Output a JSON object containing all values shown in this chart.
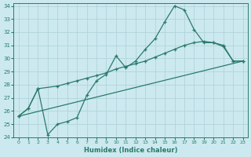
{
  "xlabel": "Humidex (Indice chaleur)",
  "background_color": "#cce9ef",
  "line_color": "#2a7a6b",
  "grid_color": "#b0d4da",
  "xlim": [
    -0.5,
    23.5
  ],
  "ylim": [
    24,
    34.2
  ],
  "xticks": [
    0,
    1,
    2,
    3,
    4,
    5,
    6,
    7,
    8,
    9,
    10,
    11,
    12,
    13,
    14,
    15,
    16,
    17,
    18,
    19,
    20,
    21,
    22,
    23
  ],
  "yticks": [
    24,
    25,
    26,
    27,
    28,
    29,
    30,
    31,
    32,
    33,
    34
  ],
  "line1_x": [
    0,
    1,
    2,
    3,
    4,
    5,
    6,
    7,
    8,
    9,
    10,
    11,
    12,
    13,
    14,
    15,
    16,
    17,
    18,
    19,
    20,
    21,
    22,
    23
  ],
  "line1_y": [
    25.6,
    26.2,
    27.7,
    24.2,
    25.0,
    25.2,
    25.5,
    27.2,
    28.3,
    28.8,
    30.2,
    29.3,
    29.8,
    30.7,
    31.5,
    32.8,
    34.0,
    33.7,
    32.2,
    31.2,
    31.2,
    31.0,
    29.8,
    29.8
  ],
  "line2_x": [
    0,
    1,
    2,
    4,
    5,
    6,
    7,
    8,
    9,
    10,
    11,
    12,
    13,
    14,
    15,
    16,
    17,
    18,
    19,
    20,
    21,
    22,
    23
  ],
  "line2_y": [
    25.6,
    26.2,
    27.7,
    27.9,
    28.1,
    28.3,
    28.5,
    28.7,
    28.9,
    29.2,
    29.4,
    29.6,
    29.8,
    30.1,
    30.4,
    30.7,
    31.0,
    31.2,
    31.3,
    31.2,
    30.9,
    29.8,
    29.8
  ],
  "line3_x": [
    0,
    23
  ],
  "line3_y": [
    25.6,
    29.8
  ]
}
